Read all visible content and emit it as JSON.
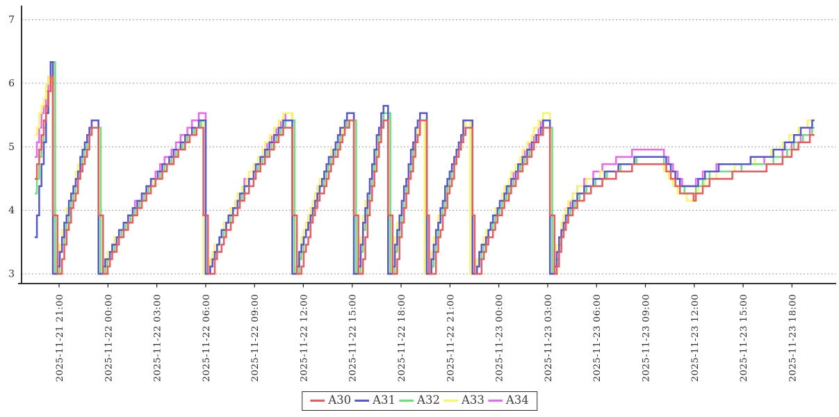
{
  "chart_data": {
    "type": "line",
    "subtype": "step-post",
    "title": "",
    "xlabel": "",
    "ylabel": "",
    "ylim": [
      3,
      7
    ],
    "yticks": [
      3,
      4,
      5,
      6,
      7
    ],
    "grid": "horizontal-dashed",
    "grid_color": "#999999",
    "axis_color": "#1a1a1a",
    "tick_label_color": "#2b2b2b",
    "legend_position": "bottom-center",
    "x_tick_labels": [
      "2025-11-21 21:00",
      "2025-11-22 00:00",
      "2025-11-22 03:00",
      "2025-11-22 06:00",
      "2025-11-22 09:00",
      "2025-11-22 12:00",
      "2025-11-22 15:00",
      "2025-11-22 18:00",
      "2025-11-22 21:00",
      "2025-11-23 00:00",
      "2025-11-23 03:00",
      "2025-11-23 06:00",
      "2025-11-23 09:00",
      "2025-11-23 12:00",
      "2025-11-23 15:00",
      "2025-11-23 18:00"
    ],
    "x_tick_hours": [
      1.5,
      4.5,
      7.5,
      10.5,
      13.5,
      16.5,
      19.5,
      22.5,
      25.5,
      28.5,
      31.5,
      34.5,
      37.5,
      40.5,
      43.5,
      46.5
    ],
    "x_start_hours": 0,
    "x_end_hours": 48,
    "time_step": 0.14,
    "value_step": 0.115,
    "rise_exponent": 0.75,
    "floor_value": 3.0,
    "notch_value": 3.9,
    "first_cycle_end": 1.2,
    "cycles": [
      {
        "start": 1.45,
        "end": 4.0,
        "peak": 5.3
      },
      {
        "start": 4.25,
        "end": 10.5,
        "peak": 5.3
      },
      {
        "start": 10.75,
        "end": 15.9,
        "peak": 5.32
      },
      {
        "start": 16.15,
        "end": 19.7,
        "peak": 5.38
      },
      {
        "start": 19.95,
        "end": 21.8,
        "peak": 5.42
      },
      {
        "start": 22.05,
        "end": 24.1,
        "peak": 5.38
      },
      {
        "start": 24.35,
        "end": 26.9,
        "peak": 5.32
      },
      {
        "start": 27.15,
        "end": 31.7,
        "peak": 5.28
      }
    ],
    "final_segment": {
      "start": 31.95,
      "anchors": [
        [
          31.95,
          3.0
        ],
        [
          32.3,
          3.5
        ],
        [
          32.7,
          3.85
        ],
        [
          33.3,
          4.1
        ],
        [
          34.0,
          4.3
        ],
        [
          35.0,
          4.47
        ],
        [
          36.0,
          4.6
        ],
        [
          36.9,
          4.7
        ],
        [
          37.5,
          4.76
        ],
        [
          38.4,
          4.78
        ],
        [
          38.9,
          4.62
        ],
        [
          39.4,
          4.4
        ],
        [
          39.8,
          4.24
        ],
        [
          40.5,
          4.2
        ],
        [
          41.0,
          4.35
        ],
        [
          41.5,
          4.48
        ],
        [
          42.2,
          4.52
        ],
        [
          43.2,
          4.58
        ],
        [
          44.2,
          4.62
        ],
        [
          45.0,
          4.68
        ],
        [
          45.7,
          4.76
        ],
        [
          46.2,
          4.85
        ],
        [
          46.7,
          4.97
        ],
        [
          47.2,
          5.08
        ],
        [
          47.6,
          5.15
        ],
        [
          48.0,
          5.25
        ]
      ]
    },
    "series": [
      {
        "name": "A30",
        "color": "#ed5858",
        "value_offset": 0.0,
        "time_lead": 0.0,
        "wobble_amp": 0.0,
        "wobble_phase": 0,
        "wobble_period": 24,
        "notch": true,
        "start_value": 4.55,
        "first_peak": 6.2
      },
      {
        "name": "A31",
        "color": "#5456d8",
        "value_offset": 0.13,
        "time_lead": 0.1,
        "wobble_amp": 0.05,
        "wobble_phase": 16,
        "wobble_period": 24,
        "notch": false,
        "start_value": 3.25,
        "first_peak": 6.5
      },
      {
        "name": "A32",
        "color": "#67e273",
        "value_offset": 0.06,
        "time_lead": 0.05,
        "wobble_amp": 0.03,
        "wobble_phase": 10,
        "wobble_period": 24,
        "notch": false,
        "start_value": 4.2,
        "first_peak": 6.3
      },
      {
        "name": "A33",
        "color": "#f8f75e",
        "value_offset": 0.1,
        "time_lead": 0.16,
        "wobble_amp": 0.12,
        "wobble_phase": 43,
        "wobble_period": 16,
        "notch": false,
        "start_value": 5.0,
        "first_peak": 6.3
      },
      {
        "name": "A34",
        "color": "#f164f1",
        "value_offset": 0.14,
        "time_lead": 0.13,
        "wobble_amp": 0.07,
        "wobble_phase": 31,
        "wobble_period": 24,
        "notch": false,
        "start_value": 4.7,
        "first_peak": 6.35
      }
    ],
    "draw_order": [
      4,
      3,
      2,
      1,
      0
    ]
  }
}
